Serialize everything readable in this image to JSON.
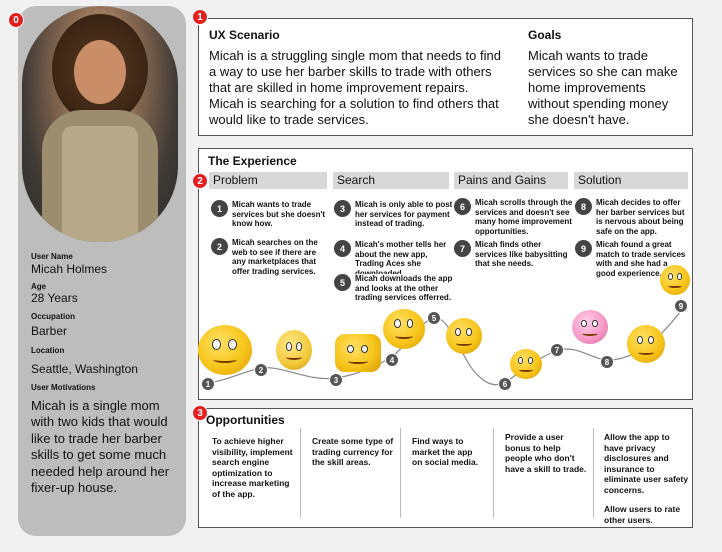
{
  "markers": [
    "0",
    "1",
    "2",
    "3"
  ],
  "persona": {
    "labels": {
      "name": "User Name",
      "age": "Age",
      "occupation": "Occupation",
      "location": "Location",
      "motivations": "User Motivations"
    },
    "values": {
      "name": "Micah Holmes",
      "age": "28 Years",
      "occupation": "Barber",
      "location": "Seattle, Washington",
      "motivations": "Micah is a single mom with two kids that would like to trade her barber skills to get some much needed help around her fixer-up house."
    }
  },
  "scenario": {
    "title": "UX Scenario",
    "text": "Micah is a struggling single mom that needs to find a way to use her barber skills to trade with others that are skilled in home improvement repairs. Micah is searching for a solution to find others that would like to trade services.",
    "goals_title": "Goals",
    "goals_text": "Micah wants to trade services so she can make home improvements without spending money she doesn't have."
  },
  "experience": {
    "title": "The Experience",
    "columns": [
      "Problem",
      "Search",
      "Pains and Gains",
      "Solution"
    ],
    "steps": [
      {
        "num": "1",
        "text": "Micah wants to trade services but she doesn't know how."
      },
      {
        "num": "2",
        "text": "Micah searches on the web to see if there are any marketplaces that offer trading services."
      },
      {
        "num": "3",
        "text": "Micah is only able to post her services for payment instead of trading."
      },
      {
        "num": "4",
        "text": "Micah's mother tells her about the new app, Trading Aces she downloaded."
      },
      {
        "num": "5",
        "text": "Micah downloads the app and looks at the other trading services offerred."
      },
      {
        "num": "6",
        "text": "Micah scrolls through the services and doesn't see many home improvement opportunities."
      },
      {
        "num": "7",
        "text": "Micah finds other services like babysitting that she needs."
      },
      {
        "num": "8",
        "text": "Micah decides to offer her barber services but is nervous about being safe on the app."
      },
      {
        "num": "9",
        "text": "Micah found a great match to trade services with and she had a good experience."
      }
    ],
    "journey_nodes": [
      "1",
      "2",
      "3",
      "4",
      "5",
      "6",
      "7",
      "8",
      "9"
    ]
  },
  "opportunities": {
    "title": "Opportunities",
    "items": [
      "To achieve higher visibility, implement search engine optimization to increase marketing of the app.",
      "Create some type of trading currency for the skill areas.",
      "Find ways to market the app on social media.",
      "Provide a user bonus to help people who don't have a skill to trade.",
      "Allow the app to have privacy disclosures and insurance to eliminate user safety concerns."
    ],
    "extra": "Allow users to rate other users."
  }
}
